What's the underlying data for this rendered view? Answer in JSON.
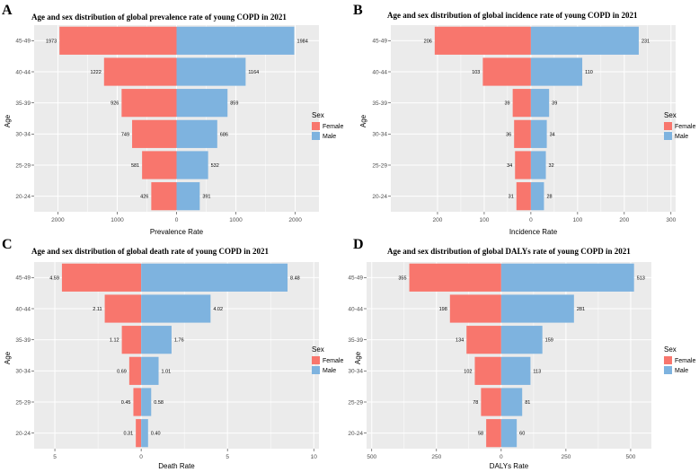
{
  "colors": {
    "female": "#F8766D",
    "male": "#7EB3DF",
    "panel_bg": "#EBEBEB",
    "grid": "#FFFFFF"
  },
  "chart_data": [
    {
      "id": "A",
      "letter": "A",
      "type": "bar",
      "orientation": "horizontal-population-pyramid",
      "title": "Age and sex distribution of global prevalence rate of young COPD in 2021",
      "xlabel": "Prevalence Rate",
      "ylabel": "Age",
      "categories": [
        "45-49",
        "40-44",
        "35-39",
        "30-34",
        "25-29",
        "20-24"
      ],
      "series": [
        {
          "name": "Female",
          "side": "left",
          "values": [
            1973,
            1222,
            926,
            749,
            581,
            426
          ],
          "labels": [
            "1973",
            "1222",
            "926",
            "749",
            "581",
            "426"
          ]
        },
        {
          "name": "Male",
          "side": "right",
          "values": [
            1984,
            1164,
            859,
            686,
            532,
            391
          ],
          "labels": [
            "1984",
            "1164",
            "859",
            "686",
            "532",
            "391"
          ]
        }
      ],
      "xlim": [
        -2400,
        2400
      ],
      "xticks": [
        -2000,
        -1000,
        0,
        1000,
        2000
      ],
      "xtick_labels": [
        "2000",
        "1000",
        "0",
        "1000",
        "2000"
      ],
      "legend_title": "Sex",
      "legend": [
        "Female",
        "Male"
      ]
    },
    {
      "id": "B",
      "letter": "B",
      "type": "bar",
      "orientation": "horizontal-population-pyramid",
      "title": "Age and sex distribution of global incidence rate of young COPD in 2021",
      "xlabel": "Incidence Rate",
      "ylabel": "Age",
      "categories": [
        "45-49",
        "40-44",
        "35-39",
        "30-34",
        "25-29",
        "20-24"
      ],
      "series": [
        {
          "name": "Female",
          "side": "left",
          "values": [
            206,
            103,
            39,
            36,
            34,
            31
          ],
          "labels": [
            "206",
            "103",
            "39",
            "36",
            "34",
            "31"
          ]
        },
        {
          "name": "Male",
          "side": "right",
          "values": [
            231,
            110,
            39,
            34,
            32,
            28
          ],
          "labels": [
            "231",
            "110",
            "39",
            "34",
            "32",
            "28"
          ]
        }
      ],
      "xlim": [
        -300,
        310
      ],
      "xticks": [
        -200,
        -100,
        0,
        100,
        200,
        300
      ],
      "xtick_labels": [
        "200",
        "100",
        "0",
        "100",
        "200",
        "300"
      ],
      "legend_title": "Sex",
      "legend": [
        "Female",
        "Male"
      ]
    },
    {
      "id": "C",
      "letter": "C",
      "type": "bar",
      "orientation": "horizontal-population-pyramid",
      "title": "Age and sex distribution of global death rate of young COPD in 2021",
      "xlabel": "Death Rate",
      "ylabel": "Age",
      "categories": [
        "45-49",
        "40-44",
        "35-39",
        "30-34",
        "25-29",
        "20-24"
      ],
      "series": [
        {
          "name": "Female",
          "side": "left",
          "values": [
            4.59,
            2.11,
            1.12,
            0.69,
            0.45,
            0.31
          ],
          "labels": [
            "4.59",
            "2.11",
            "1.12",
            "0.69",
            "0.45",
            "0.31"
          ]
        },
        {
          "name": "Male",
          "side": "right",
          "values": [
            8.48,
            4.02,
            1.76,
            1.01,
            0.58,
            0.4
          ],
          "labels": [
            "8.48",
            "4.02",
            "1.76",
            "1.01",
            "0.58",
            "0.40"
          ]
        }
      ],
      "xlim": [
        -6.2,
        10.3
      ],
      "xticks": [
        -5,
        0,
        5,
        10
      ],
      "xtick_labels": [
        "5",
        "0",
        "5",
        "10"
      ],
      "legend_title": "Sex",
      "legend": [
        "Female",
        "Male"
      ]
    },
    {
      "id": "D",
      "letter": "D",
      "type": "bar",
      "orientation": "horizontal-population-pyramid",
      "title": "Age and sex distribution of global DALYs rate of young COPD in 2021",
      "xlabel": "DALYs Rate",
      "ylabel": "Age",
      "categories": [
        "45-49",
        "40-44",
        "35-39",
        "30-34",
        "25-29",
        "20-24"
      ],
      "series": [
        {
          "name": "Female",
          "side": "left",
          "values": [
            355,
            198,
            134,
            102,
            78,
            58
          ],
          "labels": [
            "355",
            "198",
            "134",
            "102",
            "78",
            "58"
          ]
        },
        {
          "name": "Male",
          "side": "right",
          "values": [
            513,
            281,
            159,
            113,
            81,
            60
          ],
          "labels": [
            "513",
            "281",
            "159",
            "113",
            "81",
            "60"
          ]
        }
      ],
      "xlim": [
        -520,
        580
      ],
      "xticks": [
        -500,
        -250,
        0,
        250,
        500
      ],
      "xtick_labels": [
        "500",
        "250",
        "0",
        "250",
        "500"
      ],
      "legend_title": "Sex",
      "legend": [
        "Female",
        "Male"
      ]
    }
  ]
}
